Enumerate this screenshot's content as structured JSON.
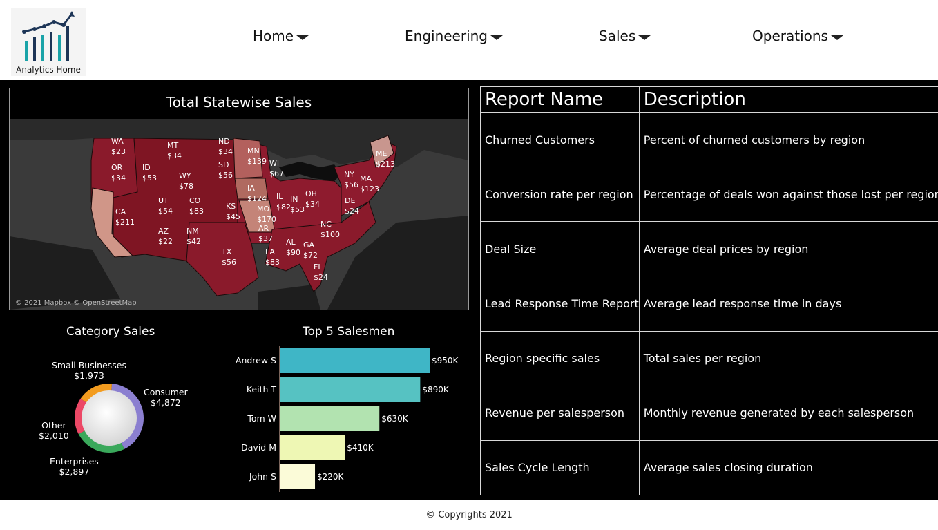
{
  "header": {
    "logo_text": "Analytics Home",
    "nav": [
      {
        "label": "Home"
      },
      {
        "label": "Engineering"
      },
      {
        "label": "Sales"
      },
      {
        "label": "Operations"
      }
    ]
  },
  "map": {
    "title": "Total Statewise Sales",
    "copyright": "© 2021 Mapbox © OpenStreetMap",
    "states": [
      {
        "abbr": "WA",
        "value": "$23"
      },
      {
        "abbr": "OR",
        "value": "$34"
      },
      {
        "abbr": "CA",
        "value": "$211"
      },
      {
        "abbr": "ID",
        "value": "$53"
      },
      {
        "abbr": "MT",
        "value": "$34"
      },
      {
        "abbr": "WY",
        "value": "$78"
      },
      {
        "abbr": "UT",
        "value": "$54"
      },
      {
        "abbr": "CO",
        "value": "$83"
      },
      {
        "abbr": "AZ",
        "value": "$22"
      },
      {
        "abbr": "NM",
        "value": "$42"
      },
      {
        "abbr": "ND",
        "value": "$34"
      },
      {
        "abbr": "SD",
        "value": "$56"
      },
      {
        "abbr": "KS",
        "value": "$45"
      },
      {
        "abbr": "TX",
        "value": "$56"
      },
      {
        "abbr": "MN",
        "value": "$139"
      },
      {
        "abbr": "IA",
        "value": "$124"
      },
      {
        "abbr": "MO",
        "value": "$170"
      },
      {
        "abbr": "AR",
        "value": "$37"
      },
      {
        "abbr": "LA",
        "value": "$83"
      },
      {
        "abbr": "WI",
        "value": "$67"
      },
      {
        "abbr": "IL",
        "value": "$82"
      },
      {
        "abbr": "IN",
        "value": "$53"
      },
      {
        "abbr": "OH",
        "value": "$34"
      },
      {
        "abbr": "AL",
        "value": "$90"
      },
      {
        "abbr": "GA",
        "value": "$72"
      },
      {
        "abbr": "FL",
        "value": "$24"
      },
      {
        "abbr": "NC",
        "value": "$100"
      },
      {
        "abbr": "DE",
        "value": "$24"
      },
      {
        "abbr": "NY",
        "value": "$56"
      },
      {
        "abbr": "MA",
        "value": "$123"
      },
      {
        "abbr": "ME",
        "value": "$213"
      }
    ]
  },
  "category": {
    "title": "Category Sales",
    "segments": [
      {
        "name": "Small Businesses",
        "value": "$1,973",
        "amount": 1973,
        "color": "#f39c1f"
      },
      {
        "name": "Consumer",
        "value": "$4,872",
        "amount": 4872,
        "color": "#8b7fd0"
      },
      {
        "name": "Enterprises",
        "value": "$2,897",
        "amount": 2897,
        "color": "#3aa85b"
      },
      {
        "name": "Other",
        "value": "$2,010",
        "amount": 2010,
        "color": "#ec4866"
      }
    ]
  },
  "salesmen": {
    "title": "Top 5 Salesmen",
    "bars": [
      {
        "name": "Andrew S",
        "label": "$950K",
        "value": 950,
        "color": "#3fb6c6"
      },
      {
        "name": "Keith T",
        "label": "$890K",
        "value": 890,
        "color": "#56c2c2"
      },
      {
        "name": "Tom W",
        "label": "$630K",
        "value": 630,
        "color": "#b2e3b0"
      },
      {
        "name": "David M",
        "label": "$410K",
        "value": 410,
        "color": "#eef7b4"
      },
      {
        "name": "John S",
        "label": "$220K",
        "value": 220,
        "color": "#fbfbd8"
      }
    ]
  },
  "reports": {
    "headers": {
      "name": "Report Name",
      "description": "Description"
    },
    "rows": [
      {
        "name": "Churned Customers",
        "description": "Percent of churned customers by region"
      },
      {
        "name": "Conversion rate per region",
        "description": "Percentage of deals won against those lost per region"
      },
      {
        "name": "Deal Size",
        "description": "Average deal prices by region"
      },
      {
        "name": "Lead Response Time Report",
        "description": "Average lead response time in days"
      },
      {
        "name": "Region specific sales",
        "description": "Total sales per region"
      },
      {
        "name": "Revenue per salesperson",
        "description": "Monthly revenue generated by each salesperson"
      },
      {
        "name": "Sales Cycle Length",
        "description": "Average sales closing duration"
      }
    ]
  },
  "footer": {
    "text": "Copyrights 2021"
  }
}
